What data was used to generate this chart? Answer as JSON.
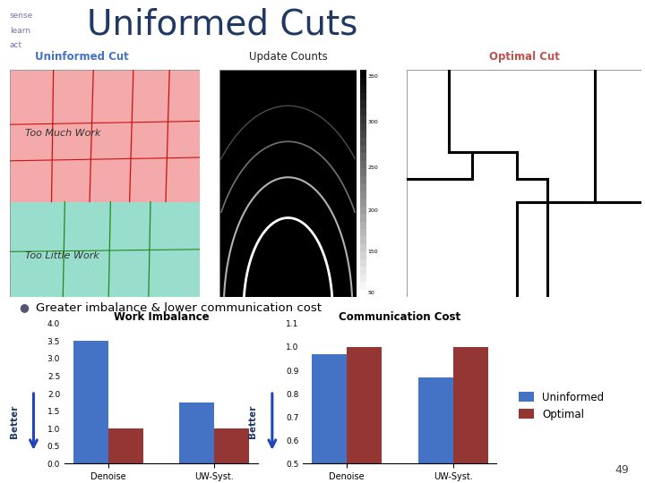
{
  "title": "Uniformed Cuts",
  "title_color": "#1F3864",
  "title_fontsize": 28,
  "bg_color": "#FFFFFF",
  "header_line_color": "#4472C4",
  "uninformed_label": "Uninformed Cut",
  "uninformed_label_color": "#4472C4",
  "update_counts_label": "Update Counts",
  "optimal_label": "Optimal Cut",
  "optimal_label_color": "#C0504D",
  "too_much_work_label": "Too Much Work",
  "too_little_work_label": "Too Little Work",
  "too_much_color": "#F4AAAA",
  "too_little_color": "#99DDCC",
  "bullet_text": "Greater imbalance & lower communication cost",
  "work_imbalance_title": "Work Imbalance",
  "comm_cost_title": "Communication Cost",
  "categories": [
    "Denoise",
    "UW-Syst."
  ],
  "work_uninformed": [
    3.5,
    1.75
  ],
  "work_optimal": [
    1.0,
    1.0
  ],
  "comm_uninformed": [
    0.97,
    0.87
  ],
  "comm_optimal": [
    1.0,
    1.0
  ],
  "work_ylim": [
    0,
    4
  ],
  "work_yticks": [
    0,
    0.5,
    1,
    1.5,
    2,
    2.5,
    3,
    3.5,
    4
  ],
  "comm_ylim": [
    0.5,
    1.1
  ],
  "comm_yticks": [
    0.5,
    0.6,
    0.7,
    0.8,
    0.9,
    1.0,
    1.1
  ],
  "bar_blue": "#4472C4",
  "bar_red": "#943634",
  "better_color": "#1F3864",
  "arrow_color": "#2244BB",
  "legend_labels": [
    "Uninformed",
    "Optimal"
  ],
  "slide_number": "49",
  "footnote_color": "#444444",
  "logo_color": "#7777AA"
}
